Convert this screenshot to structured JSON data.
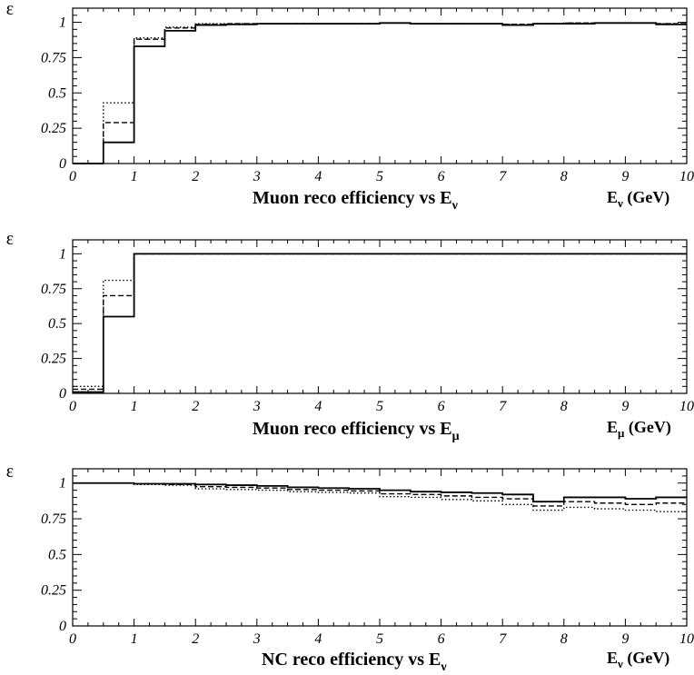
{
  "chart_data": [
    {
      "type": "line",
      "step": true,
      "title": "Muon reco efficiency vs E",
      "title_subscript": "ν",
      "xlabel": "E",
      "xlabel_subscript": "ν",
      "xlabel_unit": " (GeV)",
      "ylabel": "ε",
      "xlim": [
        0,
        10
      ],
      "ylim": [
        0,
        1.1
      ],
      "x_ticks": [
        "0",
        "1",
        "2",
        "3",
        "4",
        "5",
        "6",
        "7",
        "8",
        "9",
        "10"
      ],
      "y_ticks": [
        "0",
        "0.25",
        "0.5",
        "0.75",
        "1"
      ],
      "bin_edges": [
        0,
        0.5,
        1,
        1.5,
        2,
        2.5,
        3,
        3.5,
        4,
        4.5,
        5,
        5.5,
        6,
        6.5,
        7,
        7.5,
        8,
        8.5,
        9,
        9.5,
        10
      ],
      "series": [
        {
          "style": "solid",
          "values": [
            0,
            0.15,
            0.83,
            0.94,
            0.98,
            0.985,
            0.99,
            0.99,
            0.99,
            0.99,
            0.995,
            0.99,
            0.99,
            0.99,
            0.98,
            0.99,
            0.99,
            0.995,
            0.995,
            0.985
          ]
        },
        {
          "style": "dashed",
          "values": [
            0,
            0.29,
            0.88,
            0.96,
            0.985,
            0.99,
            0.99,
            0.99,
            0.99,
            0.99,
            0.995,
            0.99,
            0.99,
            0.99,
            0.985,
            0.99,
            0.995,
            0.995,
            0.995,
            0.99
          ]
        },
        {
          "style": "dotted",
          "values": [
            0,
            0.43,
            0.89,
            0.965,
            0.99,
            0.99,
            0.99,
            0.99,
            0.99,
            0.99,
            0.995,
            0.99,
            0.99,
            0.99,
            0.985,
            0.99,
            0.995,
            0.995,
            0.995,
            0.99
          ]
        }
      ]
    },
    {
      "type": "line",
      "step": true,
      "title": "Muon reco efficiency vs E",
      "title_subscript": "μ",
      "xlabel": "E",
      "xlabel_subscript": "μ",
      "xlabel_unit": " (GeV)",
      "ylabel": "ε",
      "xlim": [
        0,
        10
      ],
      "ylim": [
        0,
        1.1
      ],
      "x_ticks": [
        "0",
        "1",
        "2",
        "3",
        "4",
        "5",
        "6",
        "7",
        "8",
        "9",
        "10"
      ],
      "y_ticks": [
        "0",
        "0.25",
        "0.5",
        "0.75",
        "1"
      ],
      "bin_edges": [
        0,
        0.5,
        1,
        1.5,
        2,
        2.5,
        3,
        3.5,
        4,
        4.5,
        5,
        5.5,
        6,
        6.5,
        7,
        7.5,
        8,
        8.5,
        9,
        9.5,
        10
      ],
      "series": [
        {
          "style": "solid",
          "values": [
            0.01,
            0.55,
            1,
            1,
            1,
            1,
            1,
            1,
            1,
            1,
            1,
            1,
            1,
            1,
            1,
            1,
            1,
            1,
            1,
            1
          ]
        },
        {
          "style": "dashed",
          "values": [
            0.03,
            0.7,
            1,
            1,
            1,
            1,
            1,
            1,
            1,
            1,
            1,
            1,
            1,
            1,
            1,
            1,
            1,
            1,
            1,
            1
          ]
        },
        {
          "style": "dotted",
          "values": [
            0.05,
            0.81,
            1,
            1,
            1,
            1,
            1,
            1,
            1,
            1,
            1,
            1,
            1,
            1,
            1,
            1,
            1,
            1,
            1,
            1
          ]
        }
      ]
    },
    {
      "type": "line",
      "step": true,
      "title": "NC reco efficiency vs E",
      "title_subscript": "ν",
      "xlabel": "E",
      "xlabel_subscript": "ν",
      "xlabel_unit": " (GeV)",
      "ylabel": "ε",
      "xlim": [
        0,
        10
      ],
      "ylim": [
        0,
        1.1
      ],
      "x_ticks": [
        "0",
        "1",
        "2",
        "3",
        "4",
        "5",
        "6",
        "7",
        "8",
        "9",
        "10"
      ],
      "y_ticks": [
        "0",
        "0.25",
        "0.5",
        "0.75",
        "1"
      ],
      "bin_edges": [
        0,
        0.5,
        1,
        1.5,
        2,
        2.5,
        3,
        3.5,
        4,
        4.5,
        5,
        5.5,
        6,
        6.5,
        7,
        7.5,
        8,
        8.5,
        9,
        9.5,
        10
      ],
      "series": [
        {
          "style": "solid",
          "values": [
            1,
            1,
            0.995,
            0.995,
            0.99,
            0.985,
            0.98,
            0.97,
            0.965,
            0.96,
            0.95,
            0.94,
            0.935,
            0.93,
            0.92,
            0.87,
            0.9,
            0.9,
            0.89,
            0.9
          ]
        },
        {
          "style": "dashed",
          "values": [
            1,
            1,
            0.995,
            0.99,
            0.975,
            0.97,
            0.965,
            0.955,
            0.95,
            0.945,
            0.925,
            0.92,
            0.91,
            0.9,
            0.89,
            0.84,
            0.87,
            0.86,
            0.85,
            0.86
          ]
        },
        {
          "style": "dotted",
          "values": [
            1,
            1,
            0.99,
            0.985,
            0.96,
            0.955,
            0.95,
            0.94,
            0.935,
            0.93,
            0.905,
            0.9,
            0.885,
            0.875,
            0.85,
            0.81,
            0.83,
            0.82,
            0.81,
            0.8
          ]
        }
      ]
    }
  ]
}
